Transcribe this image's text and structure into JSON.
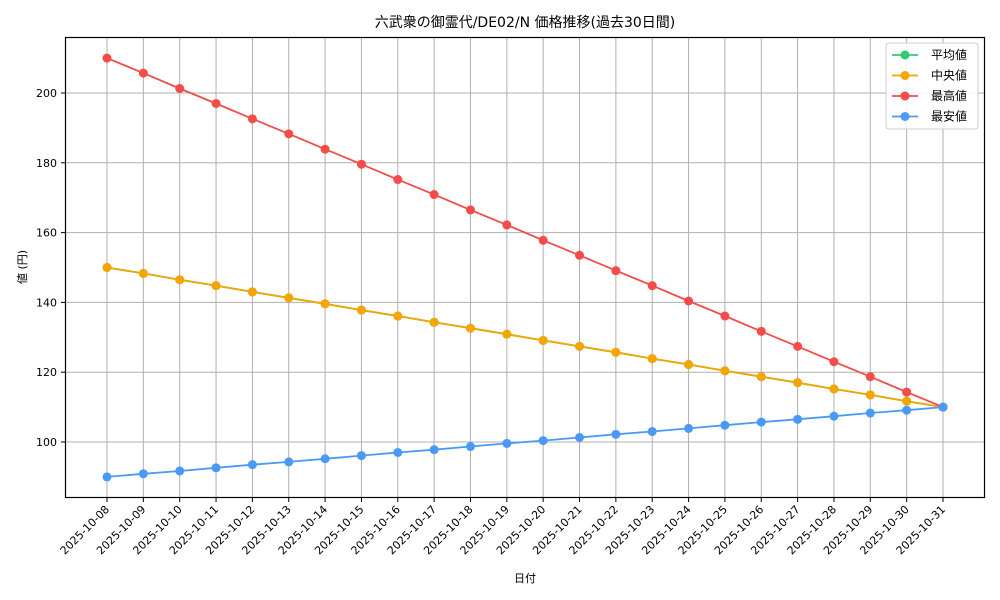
{
  "chart_data": {
    "type": "line",
    "title": "六武衆の御霊代/DE02/N 価格推移(過去30日間)",
    "xlabel": "日付",
    "ylabel": "値 (円)",
    "ylim": [
      84,
      215
    ],
    "yticks": [
      100,
      120,
      140,
      160,
      180,
      200
    ],
    "grid": true,
    "legend_position": "upper right",
    "categories": [
      "2025-10-08",
      "2025-10-09",
      "2025-10-10",
      "2025-10-11",
      "2025-10-12",
      "2025-10-13",
      "2025-10-14",
      "2025-10-15",
      "2025-10-16",
      "2025-10-17",
      "2025-10-18",
      "2025-10-19",
      "2025-10-20",
      "2025-10-21",
      "2025-10-22",
      "2025-10-23",
      "2025-10-24",
      "2025-10-25",
      "2025-10-26",
      "2025-10-27",
      "2025-10-28",
      "2025-10-29",
      "2025-10-30",
      "2025-10-31"
    ],
    "series": [
      {
        "name": "平均値",
        "color": "#2ecc71",
        "values": [
          150,
          148.3,
          146.5,
          144.8,
          143,
          141.3,
          139.6,
          137.8,
          136.1,
          134.3,
          132.6,
          130.9,
          129.1,
          127.4,
          125.7,
          123.9,
          122.2,
          120.4,
          118.7,
          117,
          115.2,
          113.5,
          111.7,
          110
        ]
      },
      {
        "name": "中央値",
        "color": "#f5a500",
        "values": [
          150,
          148.3,
          146.5,
          144.8,
          143,
          141.3,
          139.6,
          137.8,
          136.1,
          134.3,
          132.6,
          130.9,
          129.1,
          127.4,
          125.7,
          123.9,
          122.2,
          120.4,
          118.7,
          117,
          115.2,
          113.5,
          111.7,
          110
        ]
      },
      {
        "name": "最高値",
        "color": "#f44b4b",
        "values": [
          210,
          205.7,
          201.3,
          197,
          192.6,
          188.3,
          183.9,
          179.6,
          175.2,
          170.9,
          166.5,
          162.2,
          157.8,
          153.5,
          149.1,
          144.8,
          140.4,
          136.1,
          131.7,
          127.4,
          123,
          118.7,
          114.3,
          110
        ]
      },
      {
        "name": "最安値",
        "color": "#4a9af5",
        "values": [
          90,
          90.9,
          91.7,
          92.6,
          93.5,
          94.3,
          95.2,
          96.1,
          97,
          97.8,
          98.7,
          99.6,
          100.4,
          101.3,
          102.2,
          103,
          103.9,
          104.8,
          105.7,
          106.5,
          107.4,
          108.3,
          109.1,
          110
        ]
      }
    ]
  }
}
